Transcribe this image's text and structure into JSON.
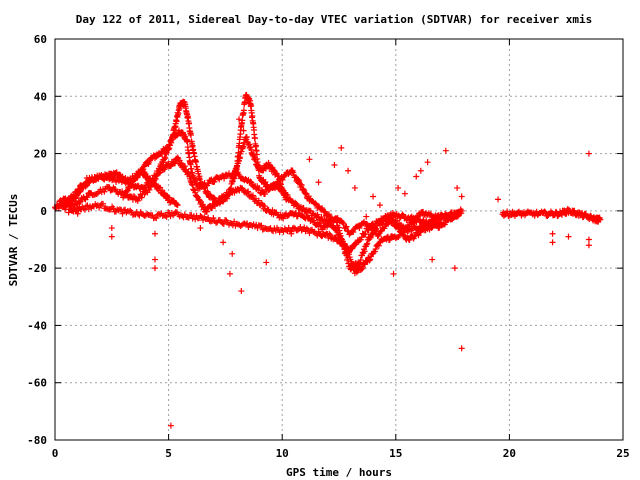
{
  "chart_data": {
    "type": "scatter",
    "title": "Day 122 of 2011, Sidereal Day-to-day VTEC variation (SDTVAR) for receiver xmis",
    "xlabel": "GPS time / hours",
    "ylabel": "SDTVAR / TECUs",
    "xlim": [
      0,
      25
    ],
    "ylim": [
      -80,
      60
    ],
    "xticks": [
      0,
      5,
      10,
      15,
      20,
      25
    ],
    "yticks": [
      -80,
      -60,
      -40,
      -20,
      0,
      20,
      40,
      60
    ],
    "xtick_labels": [
      "0",
      "5",
      "10",
      "15",
      "20",
      "25"
    ],
    "ytick_labels": [
      "-80",
      "-60",
      "-40",
      "-20",
      "0",
      "20",
      "40",
      "60"
    ],
    "grid": true,
    "marker": "plus",
    "color": "#ff0000",
    "series": [
      {
        "values_description": "dense track segments (x hours, y TECU)",
        "tracks": [
          [
            [
              0.0,
              1
            ],
            [
              0.4,
              2
            ],
            [
              0.8,
              4
            ],
            [
              1.2,
              8
            ],
            [
              1.6,
              11
            ],
            [
              2.0,
              12
            ],
            [
              2.6,
              11
            ],
            [
              3.2,
              10
            ],
            [
              3.8,
              14
            ],
            [
              4.2,
              18
            ],
            [
              4.6,
              20
            ],
            [
              5.0,
              22
            ],
            [
              5.3,
              30
            ],
            [
              5.5,
              37
            ],
            [
              5.7,
              38
            ],
            [
              5.9,
              30
            ],
            [
              6.1,
              20
            ],
            [
              6.4,
              10
            ],
            [
              6.8,
              5
            ],
            [
              7.2,
              3
            ],
            [
              7.6,
              5
            ],
            [
              8.0,
              15
            ],
            [
              8.2,
              30
            ],
            [
              8.4,
              40
            ],
            [
              8.6,
              38
            ],
            [
              8.8,
              25
            ],
            [
              9.0,
              12
            ],
            [
              9.4,
              8
            ],
            [
              9.8,
              9
            ],
            [
              10.2,
              5
            ],
            [
              10.6,
              2
            ],
            [
              11.0,
              0
            ],
            [
              11.6,
              -2
            ],
            [
              12.2,
              -5
            ],
            [
              12.6,
              -10
            ],
            [
              13.0,
              -20
            ],
            [
              13.4,
              -18
            ],
            [
              13.8,
              -10
            ],
            [
              14.2,
              -5
            ],
            [
              14.6,
              -2
            ],
            [
              15.0,
              -5
            ],
            [
              15.5,
              -10
            ],
            [
              16.0,
              -8
            ],
            [
              16.5,
              -4
            ],
            [
              17.0,
              -2
            ],
            [
              17.6,
              -1
            ],
            [
              17.9,
              0
            ]
          ],
          [
            [
              0.2,
              3
            ],
            [
              0.8,
              5
            ],
            [
              1.4,
              11
            ],
            [
              2.2,
              12
            ],
            [
              2.8,
              13
            ],
            [
              3.4,
              9
            ],
            [
              3.9,
              8
            ],
            [
              4.4,
              12
            ],
            [
              4.8,
              18
            ],
            [
              5.2,
              26
            ],
            [
              5.5,
              28
            ],
            [
              5.8,
              25
            ],
            [
              6.0,
              14
            ],
            [
              6.3,
              8
            ],
            [
              6.8,
              10
            ],
            [
              7.4,
              12
            ],
            [
              8.0,
              13
            ],
            [
              8.6,
              10
            ],
            [
              9.2,
              6
            ],
            [
              9.8,
              10
            ],
            [
              10.4,
              14
            ],
            [
              10.8,
              9
            ],
            [
              11.2,
              4
            ],
            [
              11.8,
              0
            ],
            [
              12.4,
              -4
            ],
            [
              12.8,
              -15
            ],
            [
              13.2,
              -12
            ],
            [
              13.8,
              -6
            ],
            [
              14.4,
              -3
            ],
            [
              15.0,
              -1
            ],
            [
              15.6,
              -3
            ],
            [
              16.2,
              -1
            ],
            [
              16.8,
              -2
            ],
            [
              17.4,
              -3
            ],
            [
              17.8,
              -1
            ]
          ],
          [
            [
              0.4,
              1
            ],
            [
              1.0,
              3
            ],
            [
              1.6,
              6
            ],
            [
              2.4,
              8
            ],
            [
              3.0,
              6
            ],
            [
              3.6,
              4
            ],
            [
              4.2,
              8
            ],
            [
              4.6,
              14
            ],
            [
              5.0,
              16
            ],
            [
              5.4,
              18
            ],
            [
              5.8,
              14
            ],
            [
              6.2,
              6
            ],
            [
              6.6,
              0
            ],
            [
              7.0,
              2
            ],
            [
              7.6,
              6
            ],
            [
              8.2,
              8
            ],
            [
              8.8,
              4
            ],
            [
              9.4,
              0
            ],
            [
              10.0,
              -2
            ],
            [
              10.6,
              -1
            ],
            [
              11.2,
              -3
            ],
            [
              11.8,
              -6
            ],
            [
              12.4,
              -2
            ],
            [
              13.0,
              -8
            ],
            [
              13.6,
              -4
            ],
            [
              14.2,
              -8
            ],
            [
              14.8,
              -3
            ],
            [
              15.4,
              -6
            ],
            [
              16.0,
              -3
            ],
            [
              16.6,
              -5
            ],
            [
              17.2,
              -4
            ]
          ],
          [
            [
              0.6,
              0
            ],
            [
              1.2,
              1
            ],
            [
              2.0,
              2
            ],
            [
              2.8,
              0
            ],
            [
              3.6,
              -1
            ],
            [
              4.4,
              -2
            ],
            [
              5.2,
              -1
            ],
            [
              6.0,
              -2
            ],
            [
              6.8,
              -3
            ],
            [
              7.6,
              -4
            ],
            [
              8.4,
              -5
            ],
            [
              9.2,
              -6
            ],
            [
              10.0,
              -7
            ],
            [
              10.8,
              -6
            ],
            [
              11.6,
              -8
            ],
            [
              12.2,
              -9
            ],
            [
              12.8,
              -12
            ],
            [
              13.2,
              -21
            ],
            [
              13.5,
              -20
            ],
            [
              13.9,
              -16
            ],
            [
              14.4,
              -10
            ],
            [
              15.0,
              -9
            ],
            [
              15.8,
              -6
            ],
            [
              16.4,
              -6
            ],
            [
              17.0,
              -5
            ]
          ],
          [
            [
              3.0,
              5
            ],
            [
              3.4,
              10
            ],
            [
              3.8,
              14
            ],
            [
              4.0,
              12
            ],
            [
              4.4,
              9
            ],
            [
              4.8,
              6
            ],
            [
              5.0,
              4
            ],
            [
              5.4,
              2
            ]
          ],
          [
            [
              7.8,
              10
            ],
            [
              8.1,
              18
            ],
            [
              8.4,
              26
            ],
            [
              8.7,
              20
            ],
            [
              9.0,
              14
            ],
            [
              9.4,
              16
            ],
            [
              9.8,
              12
            ],
            [
              10.2,
              4
            ]
          ],
          [
            [
              19.7,
              -1
            ],
            [
              20.1,
              -1
            ],
            [
              20.6,
              -1
            ],
            [
              21.2,
              -1
            ],
            [
              21.8,
              -1
            ],
            [
              22.2,
              -1
            ],
            [
              22.6,
              0
            ],
            [
              23.0,
              -1
            ],
            [
              23.4,
              -2
            ],
            [
              23.8,
              -3
            ],
            [
              24.0,
              -3
            ]
          ]
        ],
        "scatter": [
          [
            0.1,
            2
          ],
          [
            1.0,
            -1
          ],
          [
            2.5,
            -6
          ],
          [
            2.5,
            -9
          ],
          [
            4.4,
            -17
          ],
          [
            4.4,
            -20
          ],
          [
            4.4,
            -8
          ],
          [
            5.1,
            -75
          ],
          [
            6.4,
            -6
          ],
          [
            7.4,
            -11
          ],
          [
            7.7,
            -22
          ],
          [
            8.2,
            -28
          ],
          [
            8.1,
            32
          ],
          [
            8.3,
            28
          ],
          [
            7.8,
            -15
          ],
          [
            9.3,
            -18
          ],
          [
            10.4,
            -8
          ],
          [
            11.2,
            18
          ],
          [
            11.6,
            10
          ],
          [
            12.3,
            16
          ],
          [
            12.6,
            22
          ],
          [
            12.9,
            14
          ],
          [
            13.2,
            8
          ],
          [
            13.4,
            -6
          ],
          [
            13.7,
            -2
          ],
          [
            14.0,
            5
          ],
          [
            14.3,
            2
          ],
          [
            14.6,
            -10
          ],
          [
            14.9,
            -22
          ],
          [
            15.1,
            8
          ],
          [
            15.4,
            6
          ],
          [
            15.7,
            -2
          ],
          [
            15.9,
            12
          ],
          [
            16.1,
            14
          ],
          [
            16.4,
            17
          ],
          [
            16.6,
            -17
          ],
          [
            16.9,
            -4
          ],
          [
            17.2,
            21
          ],
          [
            17.4,
            -3
          ],
          [
            17.6,
            -20
          ],
          [
            17.7,
            8
          ],
          [
            17.9,
            -48
          ],
          [
            17.9,
            5
          ],
          [
            19.5,
            4
          ],
          [
            21.9,
            -8
          ],
          [
            21.9,
            -11
          ],
          [
            22.6,
            -9
          ],
          [
            23.5,
            20
          ],
          [
            23.5,
            -12
          ],
          [
            23.5,
            -10
          ]
        ]
      }
    ]
  }
}
